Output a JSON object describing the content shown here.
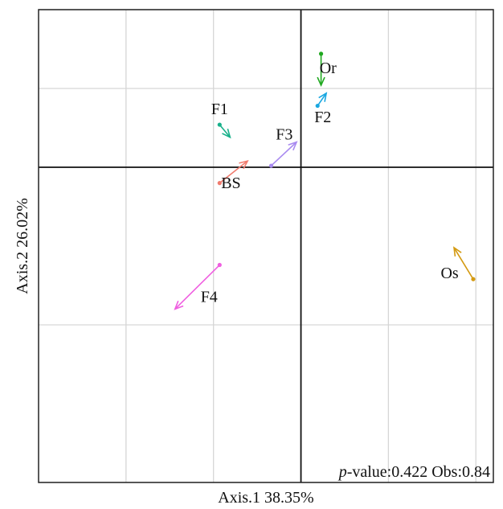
{
  "chart_data": {
    "type": "scatter",
    "subtype": "procrustes-arrows",
    "xlabel": "Axis.1 38.35%",
    "ylabel": "Axis.2 26.02%",
    "annotation": {
      "italic": "p",
      "text": "-value:0.422 Obs:0.84"
    },
    "xlim": [
      -0.3,
      0.22
    ],
    "ylim": [
      -0.2,
      0.1
    ],
    "gridlines_x": [
      -0.2,
      -0.1,
      0.0,
      0.1,
      0.2
    ],
    "gridlines_y": [
      -0.2,
      -0.1,
      0.0,
      0.05,
      0.1
    ],
    "reference_lines": {
      "x": 0,
      "y": 0
    },
    "grid": true,
    "arrows": [
      {
        "label": "Or",
        "color": "#1fa81f",
        "from": [
          0.023,
          0.072
        ],
        "to": [
          0.023,
          0.052
        ],
        "label_pos": [
          0.031,
          0.062
        ]
      },
      {
        "label": "F2",
        "color": "#1aa7e0",
        "from": [
          0.019,
          0.039
        ],
        "to": [
          0.029,
          0.047
        ],
        "label_pos": [
          0.025,
          0.031
        ]
      },
      {
        "label": "F1",
        "color": "#17b08a",
        "from": [
          -0.093,
          0.027
        ],
        "to": [
          -0.081,
          0.019
        ],
        "label_pos": [
          -0.093,
          0.036
        ]
      },
      {
        "label": "F3",
        "color": "#a98bf0",
        "from": [
          -0.034,
          0.001
        ],
        "to": [
          -0.005,
          0.016
        ],
        "label_pos": [
          -0.019,
          0.02
        ]
      },
      {
        "label": "BS",
        "color": "#f07b6e",
        "from": [
          -0.093,
          -0.01
        ],
        "to": [
          -0.061,
          0.004
        ],
        "label_pos": [
          -0.08,
          -0.011
        ]
      },
      {
        "label": "F4",
        "color": "#ef5fe0",
        "from": [
          -0.093,
          -0.062
        ],
        "to": [
          -0.144,
          -0.09
        ],
        "label_pos": [
          -0.105,
          -0.083
        ]
      },
      {
        "label": "Os",
        "color": "#d49a12",
        "from": [
          0.197,
          -0.071
        ],
        "to": [
          0.175,
          -0.051
        ],
        "label_pos": [
          0.17,
          -0.068
        ]
      }
    ]
  }
}
